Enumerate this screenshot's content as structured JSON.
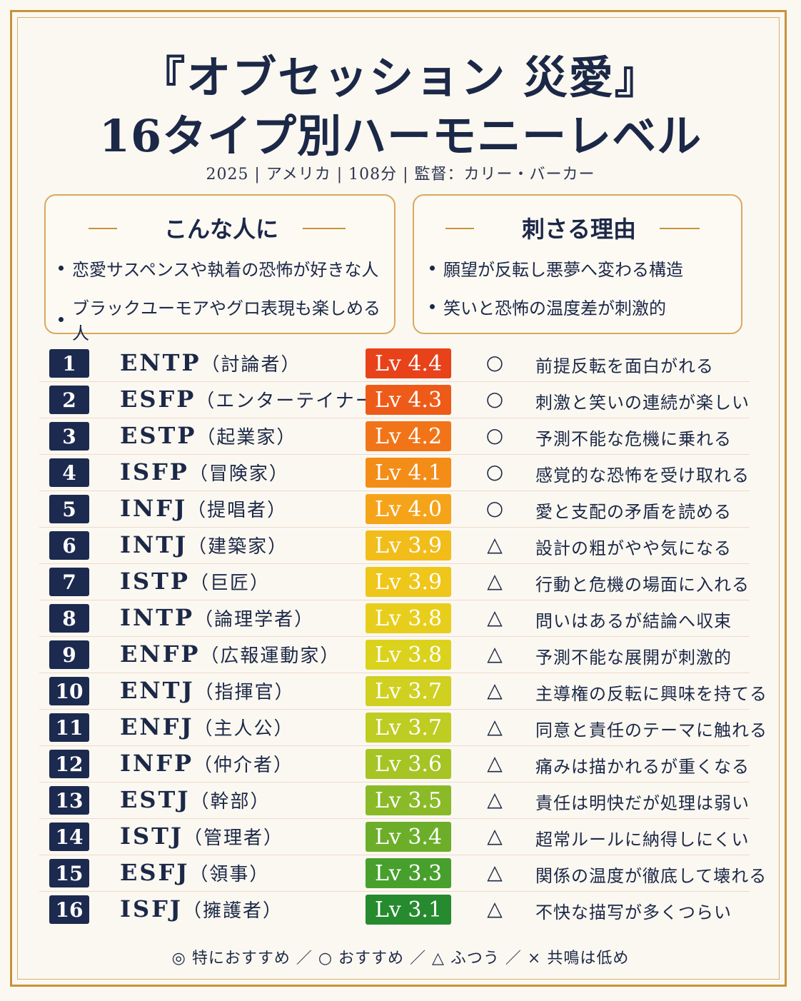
{
  "header": {
    "title_line1": "『オブセッション 災愛』",
    "title_line2": "16タイプ別ハーモニーレベル",
    "meta": "2025 | アメリカ | 108分 | 監督：カリー・バーカー"
  },
  "boxes": [
    {
      "title": "こんな人に",
      "items": [
        "恋愛サスペンスや執着の恐怖が好きな人",
        "ブラックユーモアやグロ表現も楽しめる人"
      ]
    },
    {
      "title": "刺さる理由",
      "items": [
        "願望が反転し悪夢へ変わる構造",
        "笑いと恐怖の温度差が刺激的"
      ]
    }
  ],
  "rows": [
    {
      "rank": "1",
      "type": "ENTP",
      "role": "（討論者）",
      "level": "Lv 4.4",
      "color": "#e8421a",
      "mark": "○",
      "comment": "前提反転を面白がれる"
    },
    {
      "rank": "2",
      "type": "ESFP",
      "role": "（エンターテイナー）",
      "level": "Lv 4.3",
      "color": "#ee5b18",
      "mark": "○",
      "comment": "刺激と笑いの連続が楽しい"
    },
    {
      "rank": "3",
      "type": "ESTP",
      "role": "（起業家）",
      "level": "Lv 4.2",
      "color": "#f27418",
      "mark": "○",
      "comment": "予測不能な危機に乗れる"
    },
    {
      "rank": "4",
      "type": "ISFP",
      "role": "（冒険家）",
      "level": "Lv 4.1",
      "color": "#f48c18",
      "mark": "○",
      "comment": "感覚的な恐怖を受け取れる"
    },
    {
      "rank": "5",
      "type": "INFJ",
      "role": "（提唱者）",
      "level": "Lv 4.0",
      "color": "#f5a41a",
      "mark": "○",
      "comment": "愛と支配の矛盾を読める"
    },
    {
      "rank": "6",
      "type": "INTJ",
      "role": "（建築家）",
      "level": "Lv 3.9",
      "color": "#f2bd1a",
      "mark": "△",
      "comment": "設計の粗がやや気になる"
    },
    {
      "rank": "7",
      "type": "ISTP",
      "role": "（巨匠）",
      "level": "Lv 3.9",
      "color": "#efc61a",
      "mark": "△",
      "comment": "行動と危機の場面に入れる"
    },
    {
      "rank": "8",
      "type": "INTP",
      "role": "（論理学者）",
      "level": "Lv 3.8",
      "color": "#e8ce1c",
      "mark": "△",
      "comment": "問いはあるが結論へ収束"
    },
    {
      "rank": "9",
      "type": "ENFP",
      "role": "（広報運動家）",
      "level": "Lv 3.8",
      "color": "#dbd21e",
      "mark": "△",
      "comment": "予測不能な展開が刺激的"
    },
    {
      "rank": "10",
      "type": "ENTJ",
      "role": "（指揮官）",
      "level": "Lv 3.7",
      "color": "#cfd020",
      "mark": "△",
      "comment": "主導権の反転に興味を持てる"
    },
    {
      "rank": "11",
      "type": "ENFJ",
      "role": "（主人公）",
      "level": "Lv 3.7",
      "color": "#bfcc22",
      "mark": "△",
      "comment": "同意と責任のテーマに触れる"
    },
    {
      "rank": "12",
      "type": "INFP",
      "role": "（仲介者）",
      "level": "Lv 3.6",
      "color": "#a6c424",
      "mark": "△",
      "comment": "痛みは描かれるが重くなる"
    },
    {
      "rank": "13",
      "type": "ESTJ",
      "role": "（幹部）",
      "level": "Lv 3.5",
      "color": "#8aba28",
      "mark": "△",
      "comment": "責任は明快だが処理は弱い"
    },
    {
      "rank": "14",
      "type": "ISTJ",
      "role": "（管理者）",
      "level": "Lv 3.4",
      "color": "#6cae2a",
      "mark": "△",
      "comment": "超常ルールに納得しにくい"
    },
    {
      "rank": "15",
      "type": "ESFJ",
      "role": "（領事）",
      "level": "Lv 3.3",
      "color": "#48a02c",
      "mark": "△",
      "comment": "関係の温度が徹底して壊れる"
    },
    {
      "rank": "16",
      "type": "ISFJ",
      "role": "（擁護者）",
      "level": "Lv 3.1",
      "color": "#268a2e",
      "mark": "△",
      "comment": "不快な描写が多くつらい"
    }
  ],
  "legend": "◎ 特におすすめ ／ ○ おすすめ ／ △ ふつう ／ × 共鳴は低め"
}
